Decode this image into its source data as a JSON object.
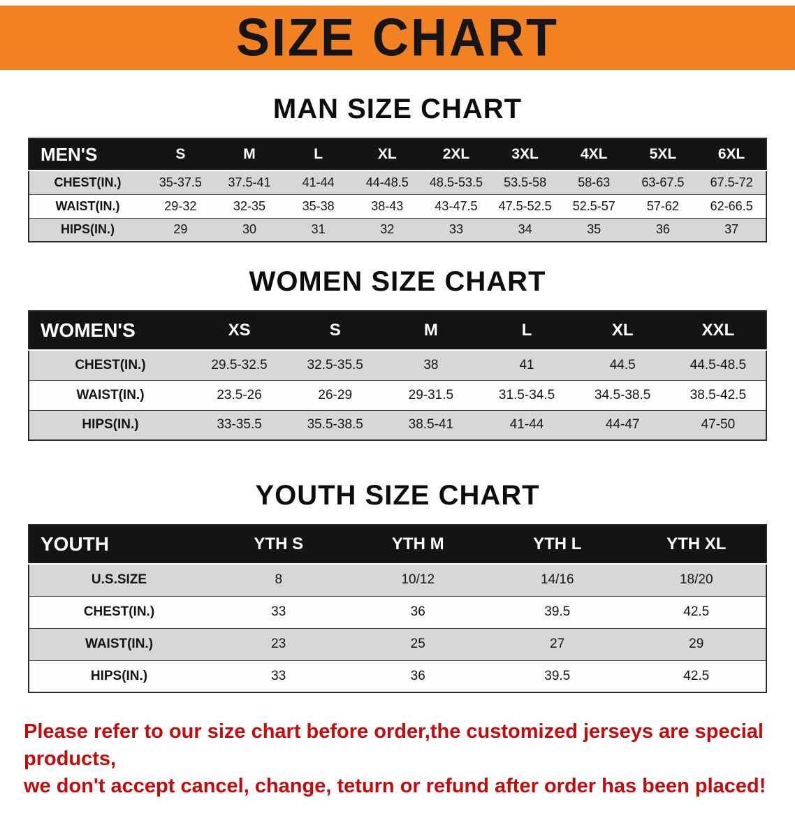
{
  "banner": {
    "title": "SIZE CHART",
    "bg_color": "#f28122",
    "text_color": "#151515"
  },
  "colors": {
    "table_header_bg": "#141414",
    "row_gray": "#d7d7d7",
    "row_white": "#fdfdfd",
    "disclaimer_red": "#c40a0a"
  },
  "sections": [
    {
      "heading": "MAN SIZE CHART",
      "table": {
        "header": [
          "MEN'S",
          "S",
          "M",
          "L",
          "XL",
          "2XL",
          "3XL",
          "4XL",
          "5XL",
          "6XL"
        ],
        "rows": [
          {
            "label": "CHEST(IN.)",
            "values": [
              "35-37.5",
              "37.5-41",
              "41-44",
              "44-48.5",
              "48.5-53.5",
              "53.5-58",
              "58-63",
              "63-67.5",
              "67.5-72"
            ]
          },
          {
            "label": "WAIST(IN.)",
            "values": [
              "29-32",
              "32-35",
              "35-38",
              "38-43",
              "43-47.5",
              "47.5-52.5",
              "52.5-57",
              "57-62",
              "62-66.5"
            ]
          },
          {
            "label": "HIPS(IN.)",
            "values": [
              "29",
              "30",
              "31",
              "32",
              "33",
              "34",
              "35",
              "36",
              "37"
            ]
          }
        ]
      }
    },
    {
      "heading": "WOMEN SIZE CHART",
      "table": {
        "header": [
          "WOMEN'S",
          "XS",
          "S",
          "M",
          "L",
          "XL",
          "XXL"
        ],
        "rows": [
          {
            "label": "CHEST(IN.)",
            "values": [
              "29.5-32.5",
              "32.5-35.5",
              "38",
              "41",
              "44.5",
              "44.5-48.5"
            ]
          },
          {
            "label": "WAIST(IN.)",
            "values": [
              "23.5-26",
              "26-29",
              "29-31.5",
              "31.5-34.5",
              "34.5-38.5",
              "38.5-42.5"
            ]
          },
          {
            "label": "HIPS(IN.)",
            "values": [
              "33-35.5",
              "35.5-38.5",
              "38.5-41",
              "41-44",
              "44-47",
              "47-50"
            ]
          }
        ]
      }
    },
    {
      "heading": "YOUTH SIZE CHART",
      "table": {
        "header": [
          "YOUTH",
          "YTH S",
          "YTH M",
          "YTH L",
          "YTH XL"
        ],
        "rows": [
          {
            "label": "U.S.SIZE",
            "values": [
              "8",
              "10/12",
              "14/16",
              "18/20"
            ]
          },
          {
            "label": "CHEST(IN.)",
            "values": [
              "33",
              "36",
              "39.5",
              "42.5"
            ]
          },
          {
            "label": "WAIST(IN.)",
            "values": [
              "23",
              "25",
              "27",
              "29"
            ]
          },
          {
            "label": "HIPS(IN.)",
            "values": [
              "33",
              "36",
              "39.5",
              "42.5"
            ]
          }
        ]
      }
    }
  ],
  "disclaimer": {
    "line1": "Please refer to our size chart before order,the customized jerseys are special products,",
    "line2": "we don't accept cancel, change, teturn or refund after order has been placed!"
  }
}
